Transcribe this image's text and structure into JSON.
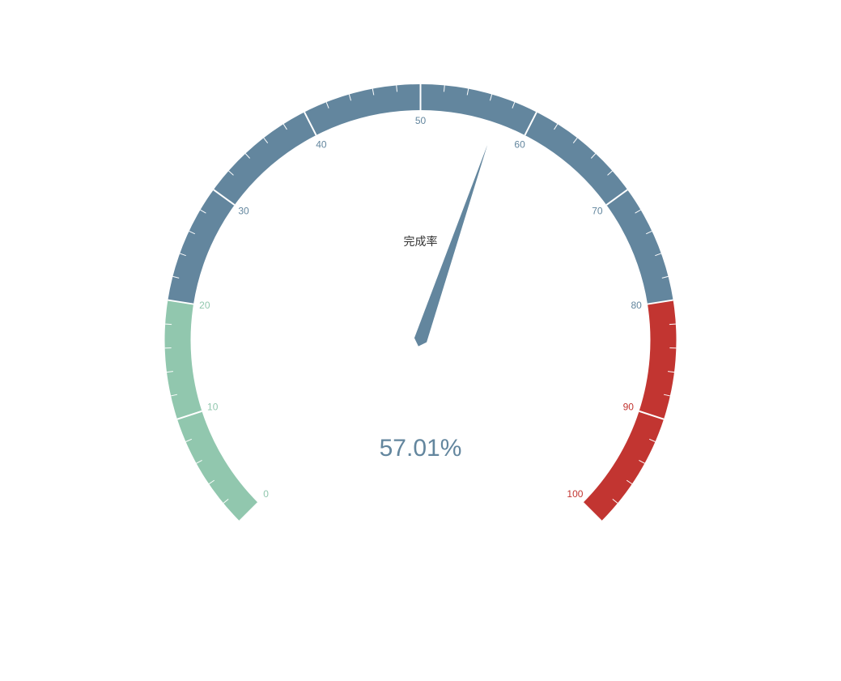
{
  "chart_data": {
    "type": "gauge",
    "title": "完成率",
    "value": 57.01,
    "value_text": "57.01%",
    "min": 0,
    "max": 100,
    "split_number": 10,
    "ticks_per_split": 5,
    "start_angle_deg": 225,
    "end_angle_deg": -45,
    "tick_labels": [
      "0",
      "10",
      "20",
      "30",
      "40",
      "50",
      "60",
      "70",
      "80",
      "90",
      "100"
    ],
    "bands": [
      {
        "to": 0.2,
        "color": "#91c7ae"
      },
      {
        "to": 0.8,
        "color": "#63869e"
      },
      {
        "to": 1.0,
        "color": "#c23531"
      }
    ],
    "pointer_color": "#63869e",
    "value_color": "#63869e",
    "title_color": "#333333"
  }
}
